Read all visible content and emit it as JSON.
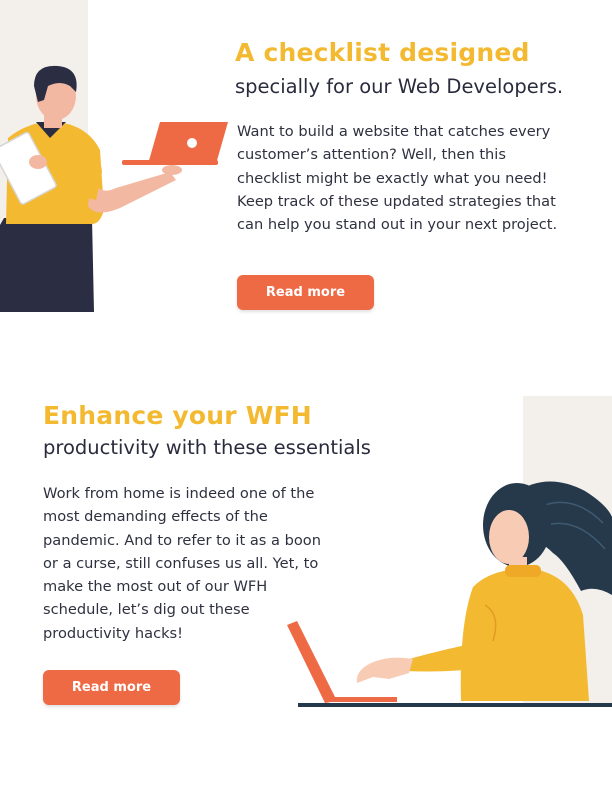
{
  "colors": {
    "accent_yellow": "#f3b931",
    "accent_orange": "#ee6a45",
    "text_dark": "#2a2c3d",
    "panel_bg": "#f3efeb"
  },
  "sections": [
    {
      "title": "A checklist designed",
      "subtitle": "specially for our Web Developers.",
      "body": "Want to build a website that catches every customer’s attention? Well, then this checklist might be exactly what you need! Keep track of these updated strategies that can help you stand out in your next project.",
      "button_label": "Read more",
      "illustration": "man-holding-laptop-illustration"
    },
    {
      "title": "Enhance your WFH",
      "subtitle": "productivity with these essentials",
      "body": "Work from home is indeed one of the most demanding effects of the pandemic. And to refer to it as a boon or a curse, still confuses us all. Yet, to make the most out of our WFH schedule, let’s dig out these productivity hacks!",
      "button_label": "Read more",
      "illustration": "woman-typing-on-laptop-illustration"
    }
  ]
}
